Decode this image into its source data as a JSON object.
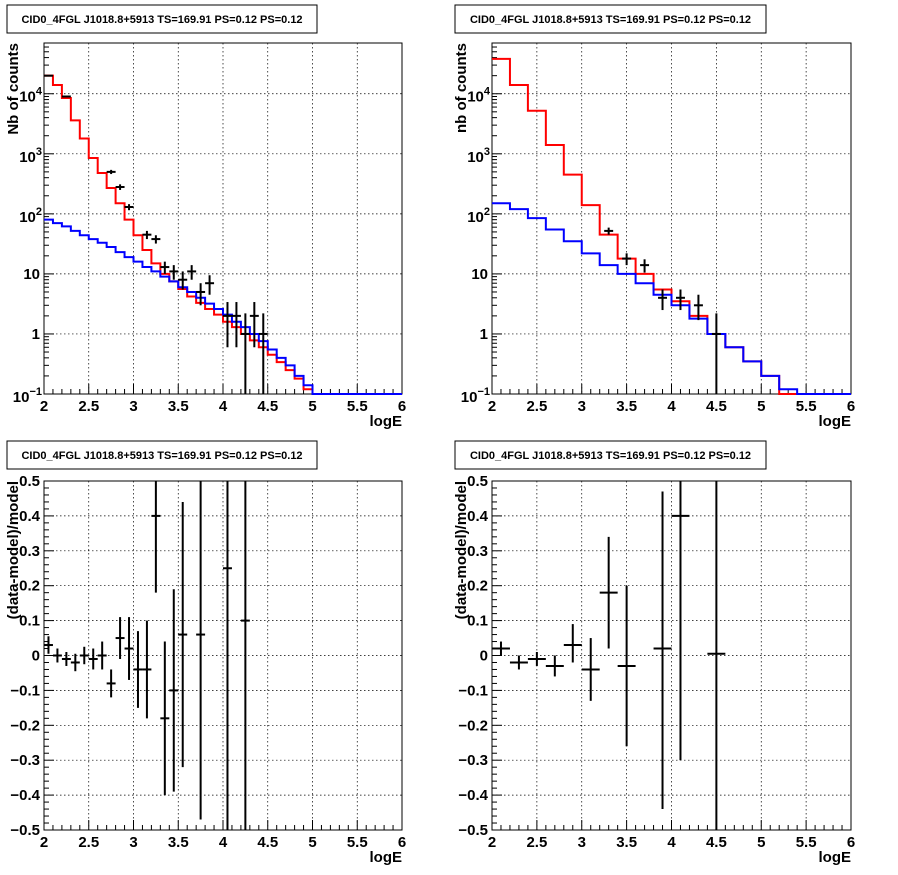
{
  "colors": {
    "data": "#000000",
    "model_total": "#ff0000",
    "model_bkg": "#0000ff",
    "grid": "#000000"
  },
  "chart_data": [
    {
      "type": "line",
      "title": "CID0_4FGL J1018.8+5913 TS=169.91 PS=0.12 PS=0.12",
      "xlabel": "logE",
      "ylabel": "Nb of counts",
      "xlim": [
        2,
        6
      ],
      "ylim": [
        0.1,
        70000
      ],
      "log_y": true,
      "grid": true,
      "xticks": [
        "2",
        "2.5",
        "3",
        "3.5",
        "4",
        "4.5",
        "5",
        "5.5",
        "6"
      ],
      "yticks": [
        {
          "v": 0.1,
          "mant": "10",
          "exp": "−1"
        },
        {
          "v": 1,
          "mant": "1",
          "exp": ""
        },
        {
          "v": 10,
          "mant": "10",
          "exp": ""
        },
        {
          "v": 100,
          "mant": "10",
          "exp": "2"
        },
        {
          "v": 1000,
          "mant": "10",
          "exp": "3"
        },
        {
          "v": 10000,
          "mant": "10",
          "exp": "4"
        }
      ],
      "bin_edges": [
        2.0,
        2.1,
        2.2,
        2.3,
        2.4,
        2.5,
        2.6,
        2.7,
        2.8,
        2.9,
        3.0,
        3.1,
        3.2,
        3.3,
        3.4,
        3.5,
        3.6,
        3.7,
        3.8,
        3.9,
        4.0,
        4.1,
        4.2,
        4.3,
        4.4,
        4.5,
        4.6,
        4.7,
        4.8,
        4.9,
        5.0,
        5.1,
        5.2,
        5.3,
        5.4,
        5.5,
        5.6,
        5.7,
        5.8,
        5.9,
        6.0
      ],
      "series": [
        {
          "name": "",
          "kind": "step",
          "color": "#ff0000",
          "values": [
            20000,
            14000,
            8500,
            3600,
            1800,
            850,
            480,
            270,
            150,
            80,
            44,
            25,
            15,
            10,
            7.5,
            5.6,
            4.2,
            3.3,
            2.6,
            2.1,
            1.6,
            1.3,
            1.0,
            0.78,
            0.6,
            0.45,
            0.34,
            0.25,
            0.18,
            0.12,
            0.1,
            0.1,
            0.1,
            0.1,
            0.1,
            0.1,
            0.1,
            0.1,
            0.1,
            0.1
          ]
        },
        {
          "name": "",
          "kind": "step",
          "color": "#0000ff",
          "values": [
            80,
            70,
            62,
            52,
            44,
            38,
            33,
            28,
            23,
            19,
            16,
            13,
            11,
            9,
            7.5,
            6,
            5,
            4,
            3.2,
            2.6,
            2.1,
            1.6,
            1.3,
            1.0,
            0.76,
            0.55,
            0.4,
            0.3,
            0.2,
            0.14,
            0.1,
            0.1,
            0.1,
            0.1,
            0.1,
            0.1,
            0.1,
            0.1,
            0.1,
            0.1
          ]
        },
        {
          "name": "",
          "kind": "errorbar",
          "color": "#000000",
          "points": [
            {
              "x": 2.05,
              "y": 20000,
              "ylo": 19700,
              "yhi": 20300
            },
            {
              "x": 2.25,
              "y": 9000,
              "ylo": 8800,
              "yhi": 9200
            },
            {
              "x": 2.75,
              "y": 500,
              "ylo": 460,
              "yhi": 540
            },
            {
              "x": 2.85,
              "y": 280,
              "ylo": 250,
              "yhi": 310
            },
            {
              "x": 2.95,
              "y": 130,
              "ylo": 115,
              "yhi": 145
            },
            {
              "x": 3.15,
              "y": 45,
              "ylo": 38,
              "yhi": 52
            },
            {
              "x": 3.25,
              "y": 38,
              "ylo": 32,
              "yhi": 44
            },
            {
              "x": 3.35,
              "y": 13,
              "ylo": 10,
              "yhi": 16
            },
            {
              "x": 3.45,
              "y": 11,
              "ylo": 8,
              "yhi": 14
            },
            {
              "x": 3.55,
              "y": 8,
              "ylo": 5.5,
              "yhi": 11
            },
            {
              "x": 3.65,
              "y": 11,
              "ylo": 8,
              "yhi": 14
            },
            {
              "x": 3.75,
              "y": 5,
              "ylo": 3,
              "yhi": 7
            },
            {
              "x": 3.85,
              "y": 7,
              "ylo": 4.5,
              "yhi": 9.5
            },
            {
              "x": 4.05,
              "y": 2,
              "ylo": 0.6,
              "yhi": 3.4
            },
            {
              "x": 4.15,
              "y": 2,
              "ylo": 0.6,
              "yhi": 3.4
            },
            {
              "x": 4.25,
              "y": 1,
              "ylo": 0.1,
              "yhi": 2.2
            },
            {
              "x": 4.35,
              "y": 2,
              "ylo": 0.6,
              "yhi": 3.4
            },
            {
              "x": 4.45,
              "y": 1,
              "ylo": 0.1,
              "yhi": 2.2
            }
          ]
        }
      ]
    },
    {
      "type": "line",
      "title": "CID0_4FGL J1018.8+5913 TS=169.91 PS=0.12 PS=0.12",
      "xlabel": "logE",
      "ylabel": "nb of counts",
      "xlim": [
        2,
        6
      ],
      "ylim": [
        0.1,
        70000
      ],
      "log_y": true,
      "grid": true,
      "xticks": [
        "2",
        "2.5",
        "3",
        "3.5",
        "4",
        "4.5",
        "5",
        "5.5",
        "6"
      ],
      "yticks": [
        {
          "v": 0.1,
          "mant": "10",
          "exp": "−1"
        },
        {
          "v": 1,
          "mant": "1",
          "exp": ""
        },
        {
          "v": 10,
          "mant": "10",
          "exp": ""
        },
        {
          "v": 100,
          "mant": "10",
          "exp": "2"
        },
        {
          "v": 1000,
          "mant": "10",
          "exp": "3"
        },
        {
          "v": 10000,
          "mant": "10",
          "exp": "4"
        }
      ],
      "bin_edges": [
        2.0,
        2.2,
        2.4,
        2.6,
        2.8,
        3.0,
        3.2,
        3.4,
        3.6,
        3.8,
        4.0,
        4.2,
        4.4,
        4.6,
        4.8,
        5.0,
        5.2,
        5.4,
        5.6,
        5.8,
        6.0
      ],
      "series": [
        {
          "name": "",
          "kind": "step",
          "color": "#ff0000",
          "values": [
            38000,
            14000,
            5200,
            1400,
            450,
            140,
            45,
            18,
            10,
            5.5,
            3.5,
            2.0,
            1.0,
            0.6,
            0.35,
            0.2,
            0.1,
            0.1,
            0.1,
            0.1
          ]
        },
        {
          "name": "",
          "kind": "step",
          "color": "#0000ff",
          "values": [
            150,
            120,
            85,
            55,
            35,
            22,
            14,
            10,
            7,
            4.5,
            3,
            1.8,
            1.0,
            0.6,
            0.35,
            0.2,
            0.12,
            0.1,
            0.1,
            0.1
          ]
        },
        {
          "name": "",
          "kind": "errorbar",
          "color": "#000000",
          "points": [
            {
              "x": 3.3,
              "y": 52,
              "ylo": 45,
              "yhi": 59
            },
            {
              "x": 3.5,
              "y": 18,
              "ylo": 14,
              "yhi": 22
            },
            {
              "x": 3.7,
              "y": 14,
              "ylo": 10.5,
              "yhi": 17.5
            },
            {
              "x": 3.9,
              "y": 4,
              "ylo": 2.5,
              "yhi": 5.5
            },
            {
              "x": 4.1,
              "y": 4,
              "ylo": 2.5,
              "yhi": 5.5
            },
            {
              "x": 4.3,
              "y": 3,
              "ylo": 1.7,
              "yhi": 4.5
            },
            {
              "x": 4.5,
              "y": 1,
              "ylo": 0.1,
              "yhi": 2.2
            }
          ]
        }
      ]
    },
    {
      "type": "scatter",
      "title": "CID0_4FGL J1018.8+5913 TS=169.91 PS=0.12 PS=0.12",
      "xlabel": "logE",
      "ylabel": "(data-model)/model",
      "xlim": [
        2,
        6
      ],
      "ylim": [
        -0.5,
        0.5
      ],
      "log_y": false,
      "grid": true,
      "xticks": [
        "2",
        "2.5",
        "3",
        "3.5",
        "4",
        "4.5",
        "5",
        "5.5",
        "6"
      ],
      "yticks": [
        {
          "v": -0.5,
          "label": "−0.5"
        },
        {
          "v": -0.4,
          "label": "−0.4"
        },
        {
          "v": -0.3,
          "label": "−0.3"
        },
        {
          "v": -0.2,
          "label": "−0.2"
        },
        {
          "v": -0.1,
          "label": "−0.1"
        },
        {
          "v": 0,
          "label": "0"
        },
        {
          "v": 0.1,
          "label": "0.1"
        },
        {
          "v": 0.2,
          "label": "0.2"
        },
        {
          "v": 0.3,
          "label": "0.3"
        },
        {
          "v": 0.4,
          "label": "0.4"
        },
        {
          "v": 0.5,
          "label": "0.5"
        }
      ],
      "series": [
        {
          "name": "",
          "kind": "errorbar",
          "color": "#000000",
          "xerr": 0.05,
          "points": [
            {
              "x": 2.05,
              "y": 0.03,
              "ylo": 0.005,
              "yhi": 0.055
            },
            {
              "x": 2.15,
              "y": 0.0,
              "ylo": -0.02,
              "yhi": 0.02
            },
            {
              "x": 2.25,
              "y": -0.01,
              "ylo": -0.03,
              "yhi": 0.01
            },
            {
              "x": 2.35,
              "y": -0.02,
              "ylo": -0.045,
              "yhi": 0.005
            },
            {
              "x": 2.45,
              "y": 0.0,
              "ylo": -0.025,
              "yhi": 0.025
            },
            {
              "x": 2.55,
              "y": -0.01,
              "ylo": -0.04,
              "yhi": 0.02
            },
            {
              "x": 2.65,
              "y": 0.0,
              "ylo": -0.04,
              "yhi": 0.04
            },
            {
              "x": 2.75,
              "y": -0.08,
              "ylo": -0.12,
              "yhi": -0.04
            },
            {
              "x": 2.85,
              "y": 0.05,
              "ylo": -0.01,
              "yhi": 0.11
            },
            {
              "x": 2.95,
              "y": 0.02,
              "ylo": -0.07,
              "yhi": 0.11
            },
            {
              "x": 3.05,
              "y": -0.04,
              "ylo": -0.15,
              "yhi": 0.07
            },
            {
              "x": 3.15,
              "y": -0.04,
              "ylo": -0.18,
              "yhi": 0.1
            },
            {
              "x": 3.25,
              "y": 0.4,
              "ylo": 0.18,
              "yhi": 0.5
            },
            {
              "x": 3.35,
              "y": -0.18,
              "ylo": -0.4,
              "yhi": 0.04
            },
            {
              "x": 3.45,
              "y": -0.1,
              "ylo": -0.39,
              "yhi": 0.19
            },
            {
              "x": 3.55,
              "y": 0.06,
              "ylo": -0.32,
              "yhi": 0.44
            },
            {
              "x": 3.75,
              "y": 0.06,
              "ylo": -0.47,
              "yhi": 0.5
            },
            {
              "x": 4.05,
              "y": 0.25,
              "ylo": -0.5,
              "yhi": 0.5
            },
            {
              "x": 4.25,
              "y": 0.1,
              "ylo": -0.5,
              "yhi": 0.5
            }
          ]
        }
      ]
    },
    {
      "type": "scatter",
      "title": "CID0_4FGL J1018.8+5913 TS=169.91 PS=0.12 PS=0.12",
      "xlabel": "logE",
      "ylabel": "(data-model)/model",
      "xlim": [
        2,
        6
      ],
      "ylim": [
        -0.5,
        0.5
      ],
      "log_y": false,
      "grid": true,
      "xticks": [
        "2",
        "2.5",
        "3",
        "3.5",
        "4",
        "4.5",
        "5",
        "5.5",
        "6"
      ],
      "yticks": [
        {
          "v": -0.5,
          "label": "−0.5"
        },
        {
          "v": -0.4,
          "label": "−0.4"
        },
        {
          "v": -0.3,
          "label": "−0.3"
        },
        {
          "v": -0.2,
          "label": "−0.2"
        },
        {
          "v": -0.1,
          "label": "−0.1"
        },
        {
          "v": 0,
          "label": "0"
        },
        {
          "v": 0.1,
          "label": "0.1"
        },
        {
          "v": 0.2,
          "label": "0.2"
        },
        {
          "v": 0.3,
          "label": "0.3"
        },
        {
          "v": 0.4,
          "label": "0.4"
        },
        {
          "v": 0.5,
          "label": "0.5"
        }
      ],
      "series": [
        {
          "name": "",
          "kind": "errorbar",
          "color": "#000000",
          "xerr": 0.1,
          "points": [
            {
              "x": 2.1,
              "y": 0.02,
              "ylo": 0.0,
              "yhi": 0.04
            },
            {
              "x": 2.3,
              "y": -0.02,
              "ylo": -0.04,
              "yhi": 0.0
            },
            {
              "x": 2.5,
              "y": -0.01,
              "ylo": -0.03,
              "yhi": 0.01
            },
            {
              "x": 2.7,
              "y": -0.03,
              "ylo": -0.06,
              "yhi": 0.0
            },
            {
              "x": 2.9,
              "y": 0.03,
              "ylo": -0.02,
              "yhi": 0.09
            },
            {
              "x": 3.1,
              "y": -0.04,
              "ylo": -0.13,
              "yhi": 0.05
            },
            {
              "x": 3.3,
              "y": 0.18,
              "ylo": 0.02,
              "yhi": 0.34
            },
            {
              "x": 3.5,
              "y": -0.03,
              "ylo": -0.26,
              "yhi": 0.2
            },
            {
              "x": 3.9,
              "y": 0.02,
              "ylo": -0.44,
              "yhi": 0.47
            },
            {
              "x": 4.1,
              "y": 0.4,
              "ylo": -0.3,
              "yhi": 0.5
            },
            {
              "x": 4.5,
              "y": 0.005,
              "ylo": -0.5,
              "yhi": 0.5
            }
          ]
        }
      ]
    }
  ]
}
